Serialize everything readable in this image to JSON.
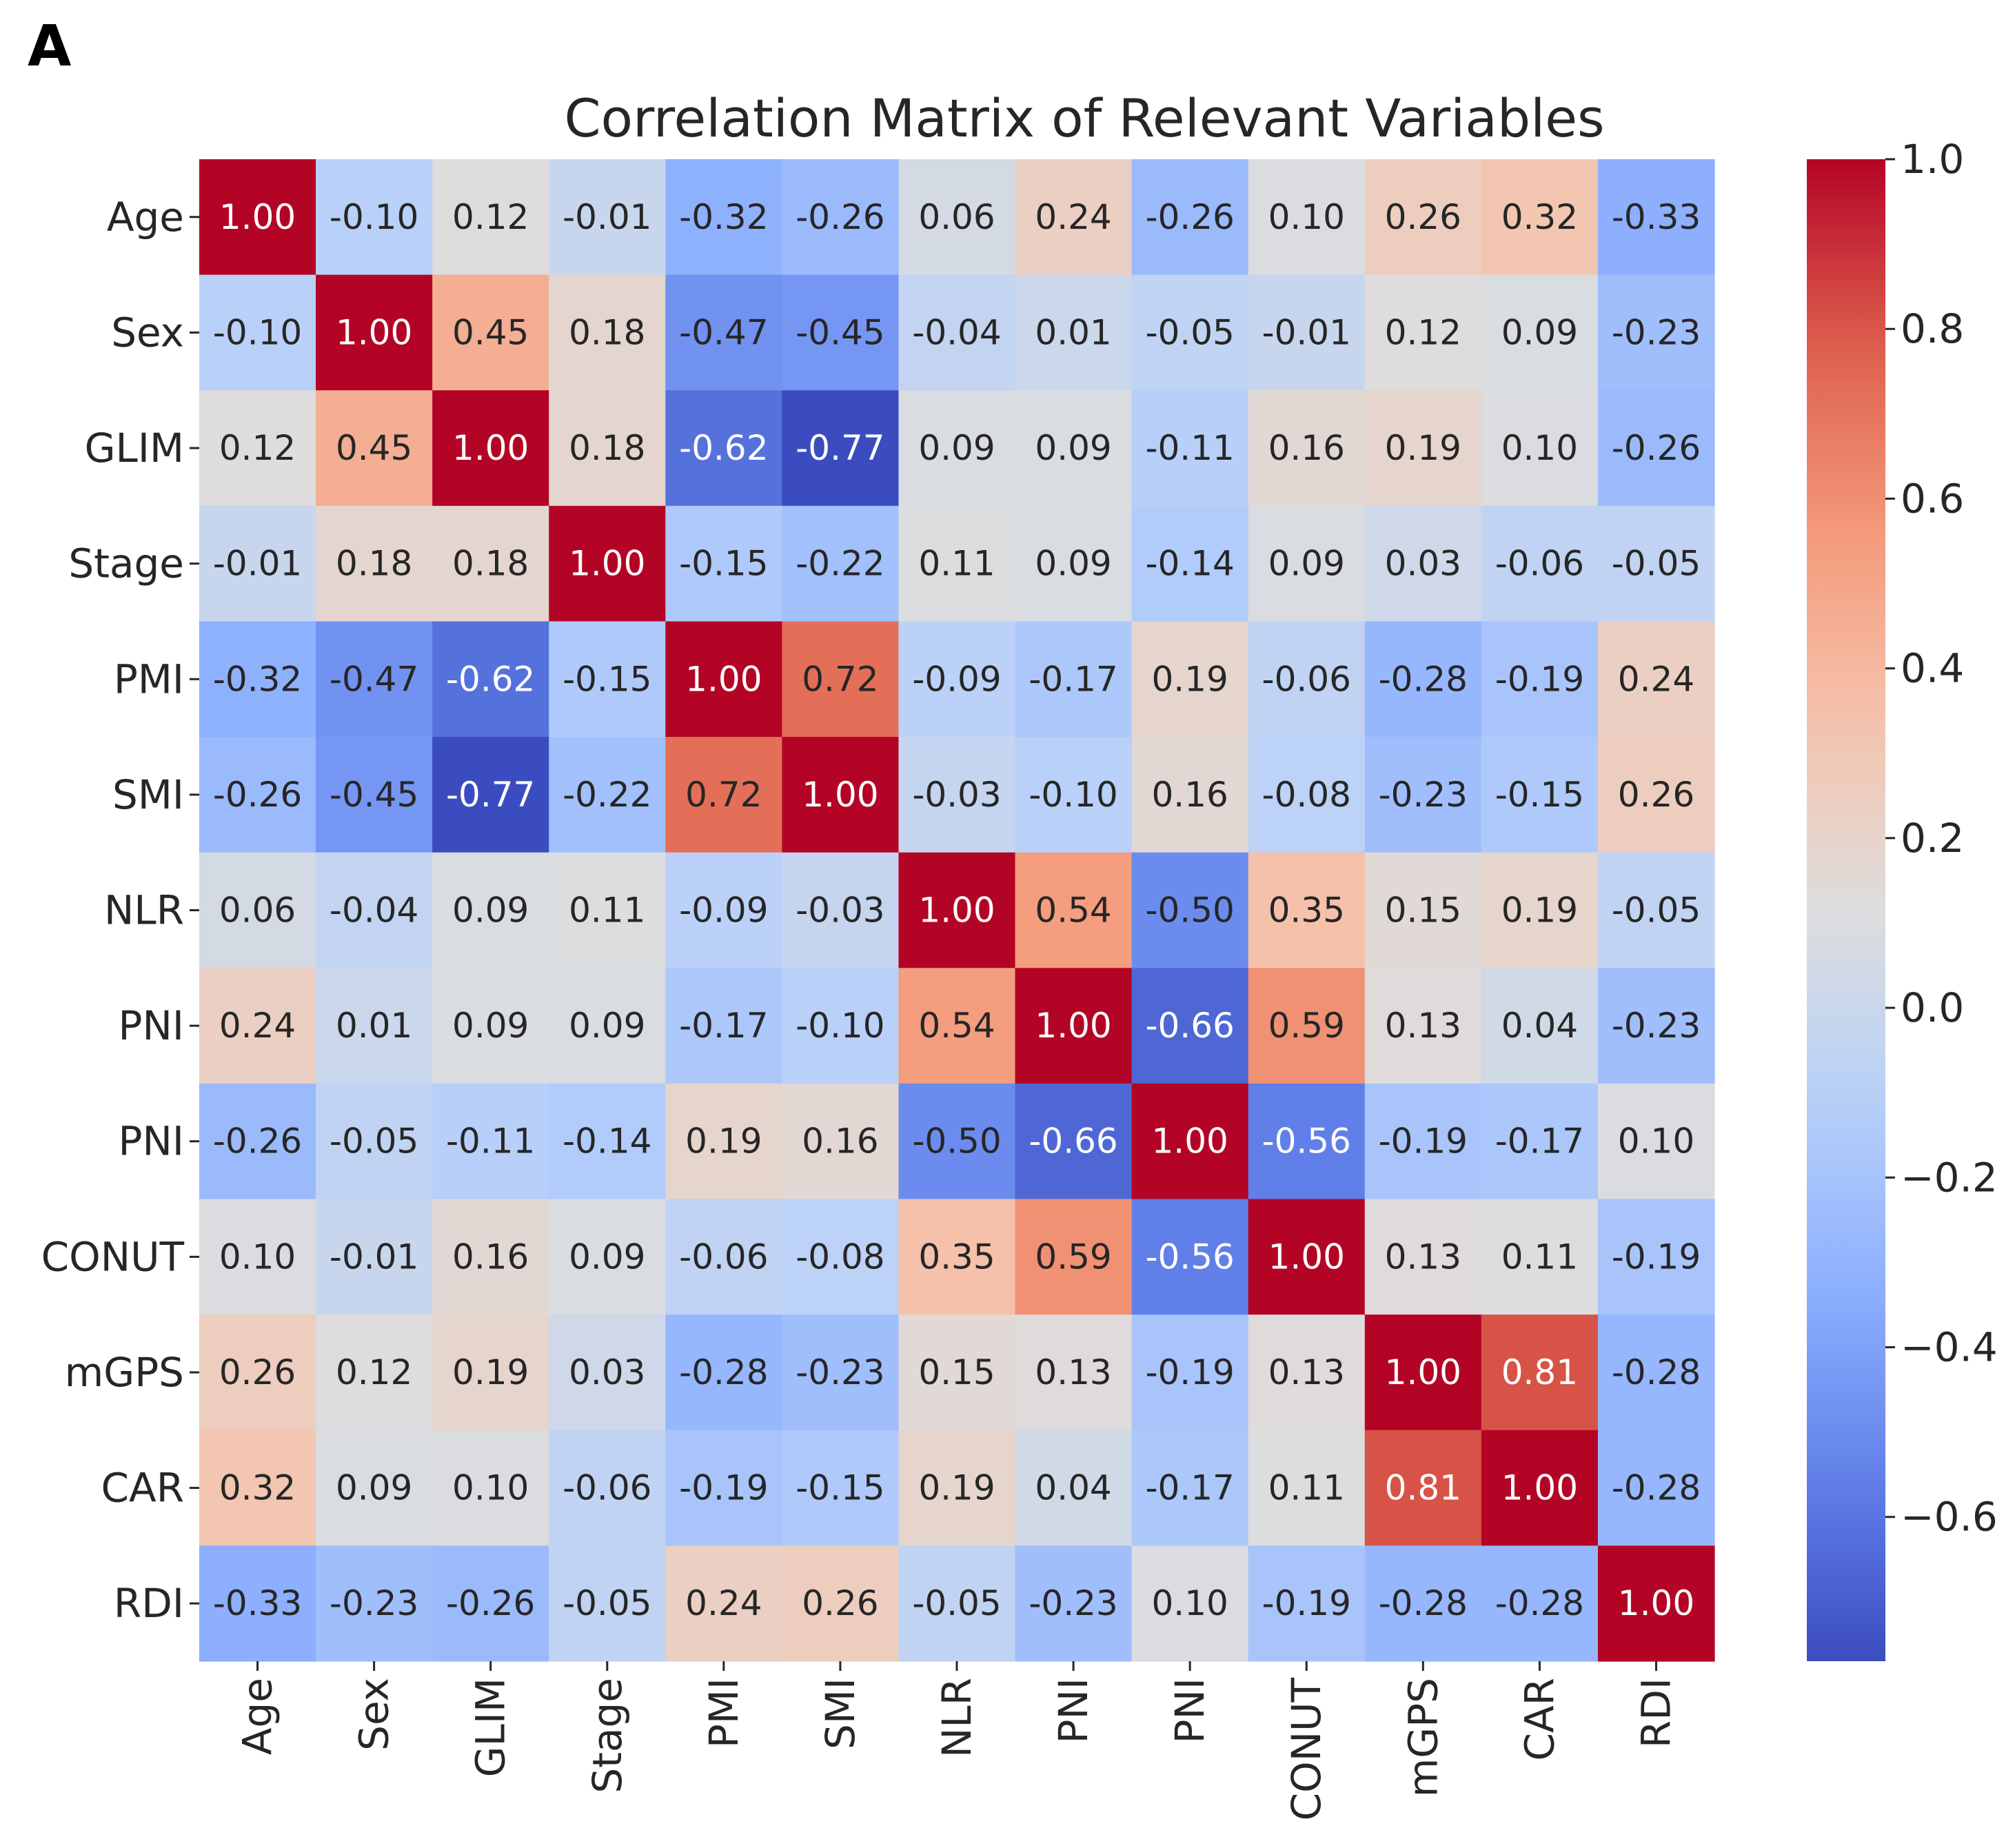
{
  "panel_label": "A",
  "chart_data": {
    "type": "heatmap",
    "title": "Correlation Matrix of Relevant Variables",
    "row_labels": [
      "Age",
      "Sex",
      "GLIM",
      "Stage",
      "PMI",
      "SMI",
      "NLR",
      "PNI",
      "PNI",
      "CONUT",
      "mGPS",
      "CAR",
      "RDI"
    ],
    "col_labels": [
      "Age",
      "Sex",
      "GLIM",
      "Stage",
      "PMI",
      "SMI",
      "NLR",
      "PNI",
      "PNI",
      "CONUT",
      "mGPS",
      "CAR",
      "RDI"
    ],
    "values": [
      [
        1.0,
        -0.1,
        0.12,
        -0.01,
        -0.32,
        -0.26,
        0.06,
        0.24,
        -0.26,
        0.1,
        0.26,
        0.32,
        -0.33
      ],
      [
        -0.1,
        1.0,
        0.45,
        0.18,
        -0.47,
        -0.45,
        -0.04,
        0.01,
        -0.05,
        -0.01,
        0.12,
        0.09,
        -0.23
      ],
      [
        0.12,
        0.45,
        1.0,
        0.18,
        -0.62,
        -0.77,
        0.09,
        0.09,
        -0.11,
        0.16,
        0.19,
        0.1,
        -0.26
      ],
      [
        -0.01,
        0.18,
        0.18,
        1.0,
        -0.15,
        -0.22,
        0.11,
        0.09,
        -0.14,
        0.09,
        0.03,
        -0.06,
        -0.05
      ],
      [
        -0.32,
        -0.47,
        -0.62,
        -0.15,
        1.0,
        0.72,
        -0.09,
        -0.17,
        0.19,
        -0.06,
        -0.28,
        -0.19,
        0.24
      ],
      [
        -0.26,
        -0.45,
        -0.77,
        -0.22,
        0.72,
        1.0,
        -0.03,
        -0.1,
        0.16,
        -0.08,
        -0.23,
        -0.15,
        0.26
      ],
      [
        0.06,
        -0.04,
        0.09,
        0.11,
        -0.09,
        -0.03,
        1.0,
        0.54,
        -0.5,
        0.35,
        0.15,
        0.19,
        -0.05
      ],
      [
        0.24,
        0.01,
        0.09,
        0.09,
        -0.17,
        -0.1,
        0.54,
        1.0,
        -0.66,
        0.59,
        0.13,
        0.04,
        -0.23
      ],
      [
        -0.26,
        -0.05,
        -0.11,
        -0.14,
        0.19,
        0.16,
        -0.5,
        -0.66,
        1.0,
        -0.56,
        -0.19,
        -0.17,
        0.1
      ],
      [
        0.1,
        -0.01,
        0.16,
        0.09,
        -0.06,
        -0.08,
        0.35,
        0.59,
        -0.56,
        1.0,
        0.13,
        0.11,
        -0.19
      ],
      [
        0.26,
        0.12,
        0.19,
        0.03,
        -0.28,
        -0.23,
        0.15,
        0.13,
        -0.19,
        0.13,
        1.0,
        0.81,
        -0.28
      ],
      [
        0.32,
        0.09,
        0.1,
        -0.06,
        -0.19,
        -0.15,
        0.19,
        0.04,
        -0.17,
        0.11,
        0.81,
        1.0,
        -0.28
      ],
      [
        -0.33,
        -0.23,
        -0.26,
        -0.05,
        0.24,
        0.26,
        -0.05,
        -0.23,
        0.1,
        -0.19,
        -0.28,
        -0.28,
        1.0
      ]
    ],
    "value_format": "2 decimals",
    "colormap": "coolwarm",
    "color_range": [
      -0.77,
      1.0
    ],
    "colorbar_ticks": [
      1.0,
      0.8,
      0.6,
      0.4,
      0.2,
      0.0,
      -0.2,
      -0.4,
      -0.6
    ],
    "colorbar_tick_labels": [
      "1.0",
      "0.8",
      "0.6",
      "0.4",
      "0.2",
      "0.0",
      "−0.2",
      "−0.4",
      "−0.6"
    ],
    "colorbar_position": "right",
    "xlabel": "",
    "ylabel": ""
  }
}
